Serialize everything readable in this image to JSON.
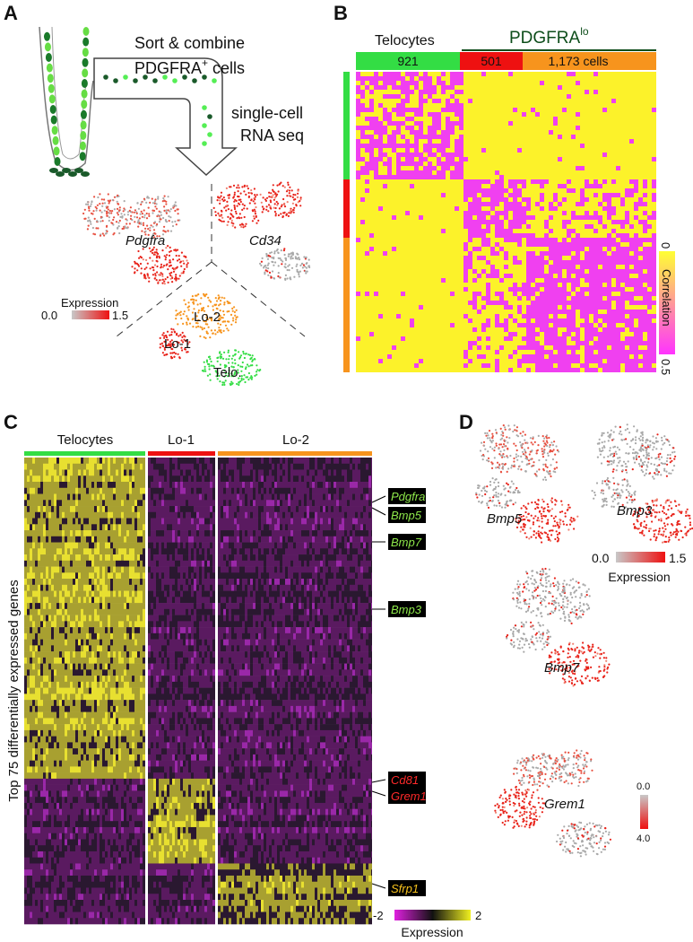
{
  "panel_a": {
    "label": "A",
    "sort_text": "Sort & combine",
    "cells_marker": "PDGFRA",
    "cells_sup": "+",
    "cells_text": "cells",
    "seq_text_1": "single-cell",
    "seq_text_2": "RNA seq",
    "genes": [
      "Pdgfra",
      "Cd34"
    ],
    "legend_title": "Expression",
    "legend_min": "0.0",
    "legend_max": "1.5",
    "clusters": [
      "Lo-2",
      "Lo-1",
      "Telo."
    ]
  },
  "panel_b": {
    "label": "B",
    "group_1": "Telocytes",
    "group_2_main": "PDGFRA",
    "group_2_sup": "lo",
    "counts": [
      "921",
      "501",
      "1,173 cells"
    ],
    "colorbar_min": "0",
    "colorbar_title": "Correlation",
    "colorbar_max": "0.5"
  },
  "panel_c": {
    "label": "C",
    "groups": [
      "Telocytes",
      "Lo-1",
      "Lo-2"
    ],
    "y_label": "Top 75 differentially expressed genes",
    "genes": [
      "Pdgfra",
      "Bmp5",
      "Bmp7",
      "Bmp3",
      "Cd81",
      "Grem1",
      "Sfrp1"
    ],
    "colorbar_min": "-2",
    "colorbar_max": "2",
    "colorbar_title": "Expression"
  },
  "panel_d": {
    "label": "D",
    "genes": [
      "Bmp5",
      "Bmp3",
      "Bmp7",
      "Grem1"
    ],
    "legend_min": "0.0",
    "legend_max": "1.5",
    "legend_title": "Expression",
    "legend2_min": "0.0",
    "legend2_max": "4.0"
  }
}
